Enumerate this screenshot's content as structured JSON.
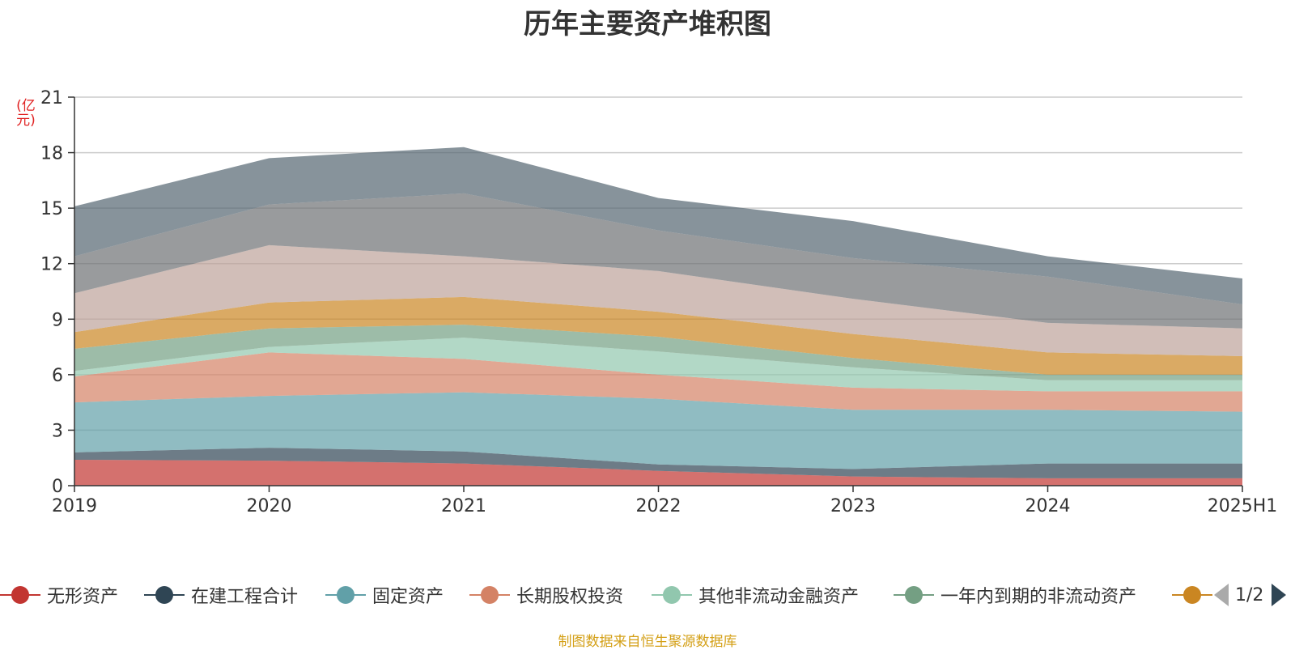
{
  "chart_data": {
    "type": "area",
    "stacked": true,
    "title": "历年主要资产堆积图",
    "y_unit": "(亿元)",
    "categories": [
      "2019",
      "2020",
      "2021",
      "2022",
      "2023",
      "2024",
      "2025H1"
    ],
    "ylim": [
      0,
      21
    ],
    "yticks": [
      0,
      3,
      6,
      9,
      12,
      15,
      18,
      21
    ],
    "grid": true,
    "legend_position": "bottom",
    "series": [
      {
        "name": "无形资产",
        "color": "#c23531",
        "values": [
          1.4,
          1.35,
          1.2,
          0.8,
          0.5,
          0.4,
          0.4
        ]
      },
      {
        "name": "在建工程合计",
        "color": "#2f4554",
        "values": [
          0.4,
          0.7,
          0.65,
          0.35,
          0.4,
          0.8,
          0.8
        ]
      },
      {
        "name": "固定资产",
        "color": "#61a0a8",
        "values": [
          2.7,
          2.8,
          3.2,
          3.55,
          3.2,
          2.9,
          2.8
        ]
      },
      {
        "name": "长期股权投资",
        "color": "#d48265",
        "values": [
          1.4,
          2.35,
          1.8,
          1.3,
          1.2,
          1.0,
          1.1
        ]
      },
      {
        "name": "其他非流动金融资产",
        "color": "#91c7ae",
        "values": [
          0.3,
          0.3,
          1.15,
          1.25,
          1.1,
          0.6,
          0.6
        ]
      },
      {
        "name": "一年内到期的非流动资产",
        "color": "#749f83",
        "values": [
          1.2,
          1.0,
          0.7,
          0.8,
          0.5,
          0.3,
          0.3
        ]
      },
      {
        "name": "",
        "color": "#ca8622",
        "values": [
          0.9,
          1.4,
          1.5,
          1.35,
          1.3,
          1.2,
          1.0
        ]
      },
      {
        "name": "",
        "color": "#bda29a",
        "values": [
          2.1,
          3.1,
          2.2,
          2.2,
          1.9,
          1.6,
          1.5
        ]
      },
      {
        "name": "",
        "color": "#6e7074",
        "values": [
          2.0,
          2.2,
          3.4,
          2.2,
          2.2,
          2.5,
          1.3
        ]
      },
      {
        "name": "",
        "color": "#546570",
        "values": [
          2.7,
          2.5,
          2.5,
          1.75,
          2.0,
          1.1,
          1.4
        ]
      }
    ]
  },
  "legend": {
    "page_indicator": "1/2",
    "prev_icon": "chevron-left-icon",
    "next_icon": "chevron-right-icon"
  },
  "footer": {
    "source": "制图数据来自恒生聚源数据库"
  }
}
